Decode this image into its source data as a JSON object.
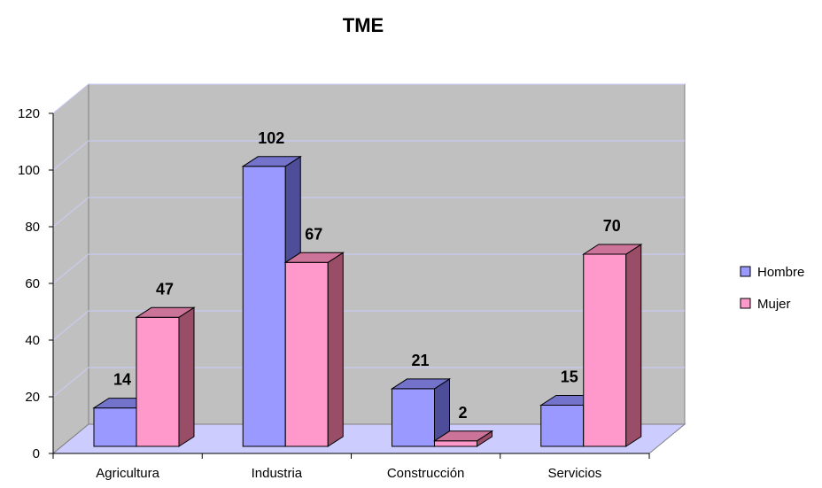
{
  "chart_data": {
    "type": "bar",
    "title": "TME",
    "categories": [
      "Agricultura",
      "Industria",
      "Construcción",
      "Servicios"
    ],
    "series": [
      {
        "name": "Hombre",
        "values": [
          14,
          102,
          21,
          15
        ],
        "color": "#9999ff",
        "side_color": "#4d4d99",
        "top_color": "#7373cc"
      },
      {
        "name": "Mujer",
        "values": [
          47,
          67,
          2,
          70
        ],
        "color": "#ff99cc",
        "side_color": "#994d66",
        "top_color": "#cc7399"
      }
    ],
    "ylim": [
      0,
      120
    ],
    "yticks": [
      "0",
      "20",
      "40",
      "60",
      "80",
      "100",
      "120"
    ],
    "grid": true,
    "legend_position": "right",
    "wall_color": "#c0c0c0",
    "floor_color": "#ccccff",
    "gridline_color": "#ccccff"
  }
}
